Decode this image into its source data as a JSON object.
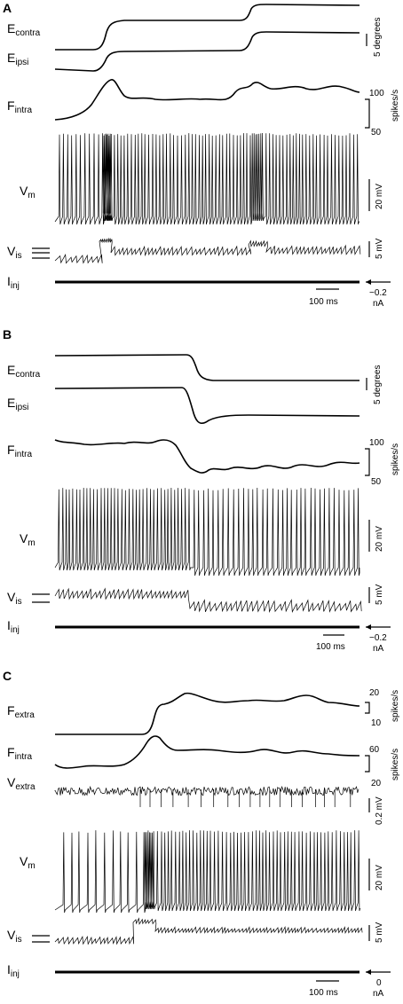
{
  "panels": [
    {
      "letter": "A",
      "labels": {
        "e_contra": {
          "main": "E",
          "sub": "contra"
        },
        "e_ipsi": {
          "main": "E",
          "sub": "ipsi"
        },
        "f_intra": {
          "main": "F",
          "sub": "intra"
        },
        "v_m": {
          "main": "V",
          "sub": "m"
        },
        "v_is": {
          "main": "V",
          "sub": "is"
        },
        "i_inj": {
          "main": "I",
          "sub": "inj"
        }
      },
      "scales": {
        "eye": "5 degrees",
        "f_intra_top": "100",
        "f_intra_bottom": "50",
        "f_intra_unit": "spikes/s",
        "v_m": "20 mV",
        "v_is": "5 mV",
        "i_inj_value": "−0.2",
        "i_inj_unit": "nA",
        "time": "100 ms"
      }
    },
    {
      "letter": "B",
      "labels": {
        "e_contra": {
          "main": "E",
          "sub": "contra"
        },
        "e_ipsi": {
          "main": "E",
          "sub": "ipsi"
        },
        "f_intra": {
          "main": "F",
          "sub": "intra"
        },
        "v_m": {
          "main": "V",
          "sub": "m"
        },
        "v_is": {
          "main": "V",
          "sub": "is"
        },
        "i_inj": {
          "main": "I",
          "sub": "inj"
        }
      },
      "scales": {
        "eye": "5 degrees",
        "f_intra_top": "100",
        "f_intra_bottom": "50",
        "f_intra_unit": "spikes/s",
        "v_m": "20 mV",
        "v_is": "5 mV",
        "i_inj_value": "−0.2",
        "i_inj_unit": "nA",
        "time": "100 ms"
      }
    },
    {
      "letter": "C",
      "labels": {
        "f_extra": {
          "main": "F",
          "sub": "extra"
        },
        "f_intra": {
          "main": "F",
          "sub": "intra"
        },
        "v_extra": {
          "main": "V",
          "sub": "extra"
        },
        "v_m": {
          "main": "V",
          "sub": "m"
        },
        "v_is": {
          "main": "V",
          "sub": "is"
        },
        "i_inj": {
          "main": "I",
          "sub": "inj"
        }
      },
      "scales": {
        "f_extra_top": "20",
        "f_extra_bottom": "10",
        "f_extra_unit": "spikes/s",
        "f_intra_top": "60",
        "f_intra_bottom": "20",
        "f_intra_unit": "spikes/s",
        "v_extra": "0.2 mV",
        "v_m": "20 mV",
        "v_is": "5 mV",
        "i_inj_value": "0",
        "i_inj_unit": "nA",
        "time": "100 ms"
      }
    }
  ]
}
